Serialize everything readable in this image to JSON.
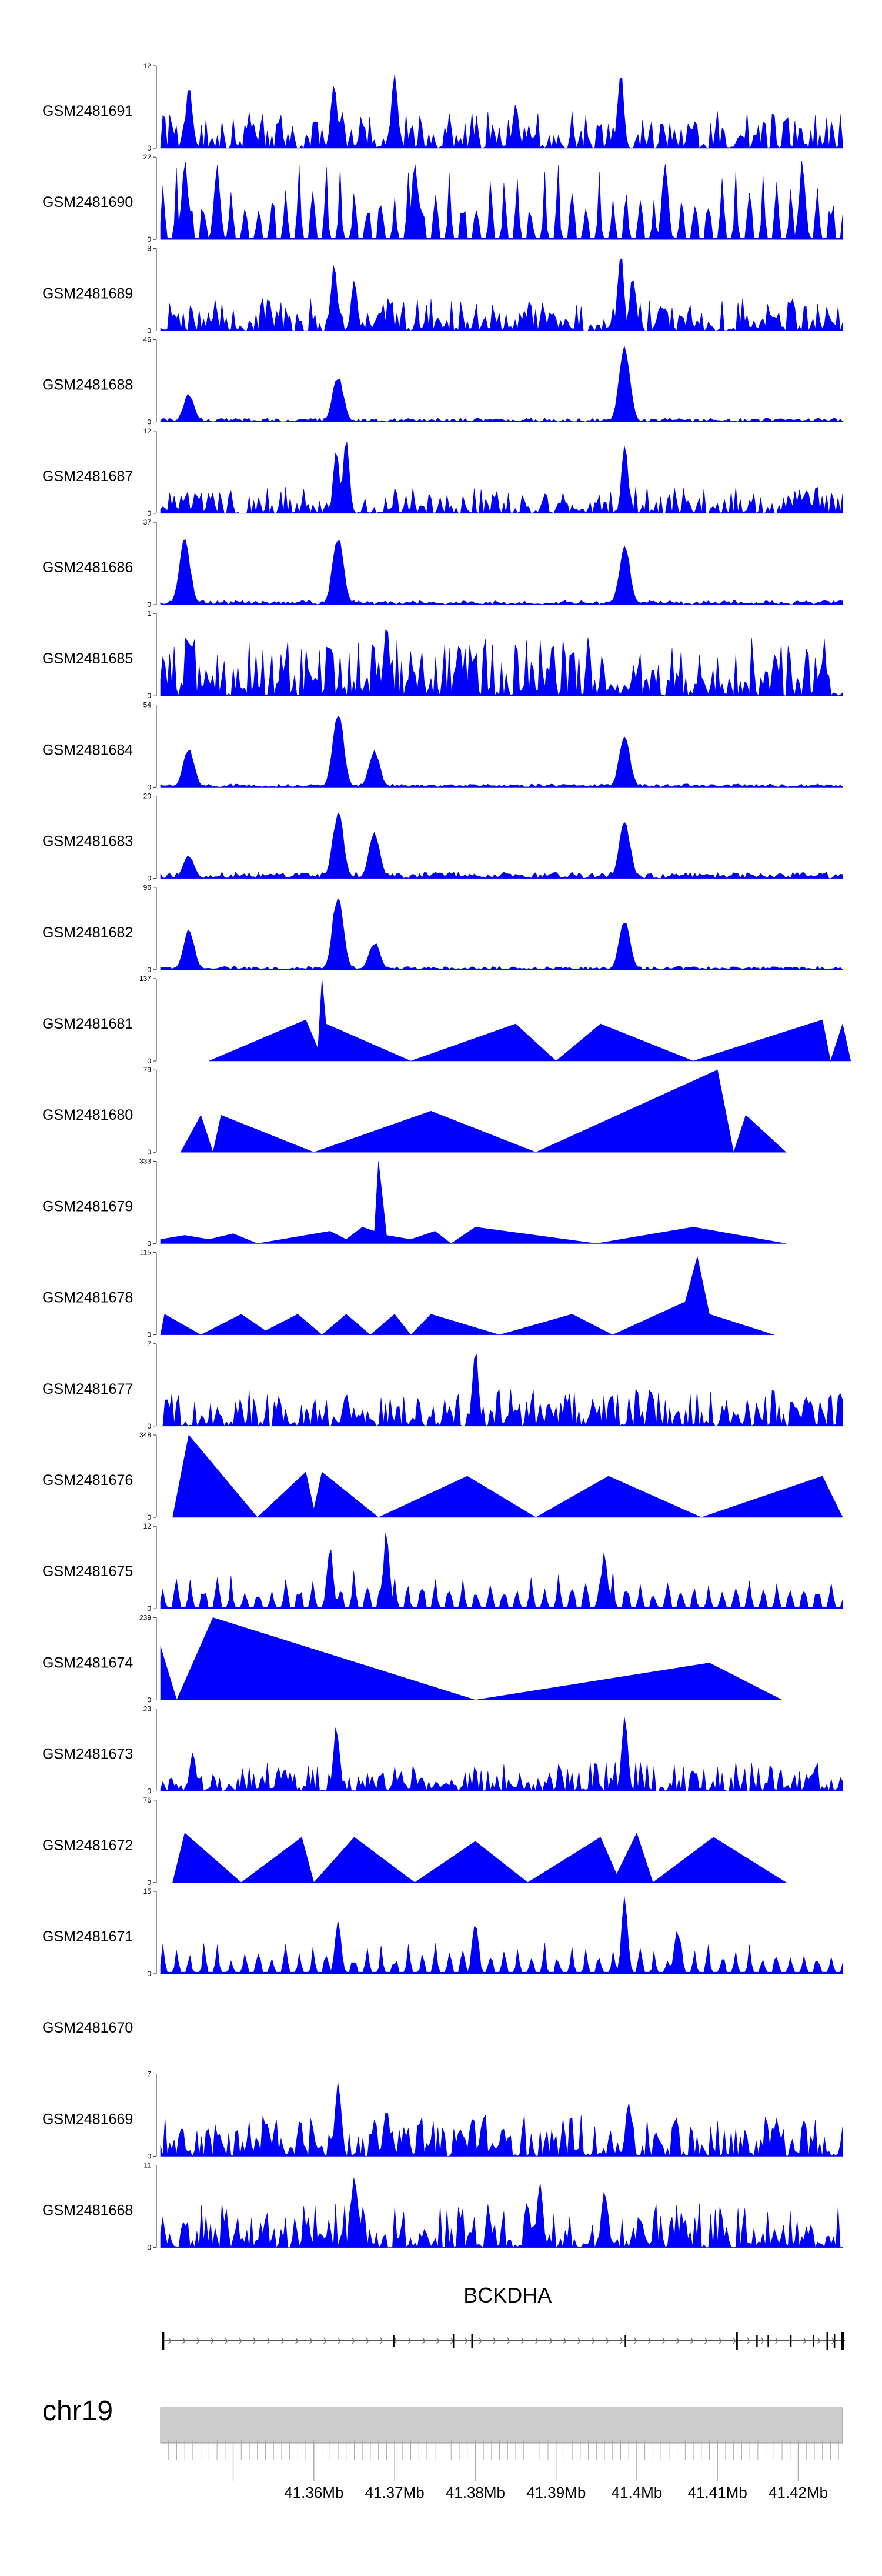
{
  "chart_data": {
    "type": "area",
    "chromosome": "chr19",
    "gene": {
      "name": "BCKDHA",
      "strand": "+"
    },
    "x_axis": {
      "range_mb": [
        41.341,
        41.4255
      ],
      "ticks": [
        "41.36Mb",
        "41.37Mb",
        "41.38Mb",
        "41.39Mb",
        "41.4Mb",
        "41.41Mb",
        "41.42Mb"
      ]
    },
    "color": "#0000ff",
    "tracks": [
      {
        "name": "GSM2481691",
        "ymax": "12",
        "style": "noisy",
        "level": 0.25,
        "peaks": [
          [
            41.3445,
            0.8
          ],
          [
            41.3625,
            0.9
          ],
          [
            41.37,
            1.0
          ],
          [
            41.398,
            1.0
          ],
          [
            41.385,
            0.55
          ]
        ]
      },
      {
        "name": "GSM2481690",
        "ymax": "22",
        "style": "sparse",
        "level": 0.7,
        "peaks": [
          [
            41.344,
            1.0
          ],
          [
            41.348,
            0.95
          ],
          [
            41.3725,
            1.0
          ],
          [
            41.4035,
            1.0
          ],
          [
            41.4205,
            1.0
          ]
        ]
      },
      {
        "name": "GSM2481689",
        "ymax": "8",
        "style": "noisy",
        "level": 0.22,
        "peaks": [
          [
            41.3625,
            0.9
          ],
          [
            41.365,
            0.65
          ],
          [
            41.398,
            1.0
          ],
          [
            41.3995,
            0.7
          ]
        ]
      },
      {
        "name": "GSM2481688",
        "ymax": "46",
        "style": "quiet",
        "level": 0.05,
        "peaks": [
          [
            41.3445,
            0.35
          ],
          [
            41.363,
            0.6
          ],
          [
            41.3985,
            1.0
          ]
        ]
      },
      {
        "name": "GSM2481687",
        "ymax": "12",
        "style": "noisy",
        "level": 0.18,
        "peaks": [
          [
            41.3628,
            0.85
          ],
          [
            41.364,
            1.0
          ],
          [
            41.3985,
            0.95
          ]
        ]
      },
      {
        "name": "GSM2481686",
        "ymax": "37",
        "style": "quiet",
        "level": 0.05,
        "peaks": [
          [
            41.344,
            0.85
          ],
          [
            41.363,
            0.9
          ],
          [
            41.3985,
            0.75
          ]
        ]
      },
      {
        "name": "GSM2481685",
        "ymax": "1",
        "style": "noisy",
        "level": 0.4,
        "peaks": [
          [
            41.3445,
            0.75
          ],
          [
            41.369,
            0.9
          ],
          [
            41.378,
            0.65
          ]
        ]
      },
      {
        "name": "GSM2481684",
        "ymax": "54",
        "style": "quiet",
        "level": 0.04,
        "peaks": [
          [
            41.3445,
            0.5
          ],
          [
            41.363,
            1.0
          ],
          [
            41.3675,
            0.45
          ],
          [
            41.3985,
            0.65
          ]
        ]
      },
      {
        "name": "GSM2481683",
        "ymax": "20",
        "style": "quiet",
        "level": 0.08,
        "peaks": [
          [
            41.363,
            0.85
          ],
          [
            41.3675,
            0.6
          ],
          [
            41.3985,
            0.75
          ],
          [
            41.3445,
            0.3
          ]
        ]
      },
      {
        "name": "GSM2481682",
        "ymax": "96",
        "style": "quiet",
        "level": 0.04,
        "peaks": [
          [
            41.3445,
            0.5
          ],
          [
            41.363,
            1.0
          ],
          [
            41.3675,
            0.35
          ],
          [
            41.3985,
            0.65
          ]
        ]
      },
      {
        "name": "GSM2481681",
        "ymax": "137",
        "style": "triangles",
        "pts": [
          [
            41.347,
            0
          ],
          [
            41.359,
            0.5
          ],
          [
            41.3605,
            0.15
          ],
          [
            41.361,
            1.0
          ],
          [
            41.3615,
            0.45
          ],
          [
            41.372,
            0
          ],
          [
            41.385,
            0.45
          ],
          [
            41.39,
            0
          ],
          [
            41.3955,
            0.45
          ],
          [
            41.407,
            0
          ],
          [
            41.423,
            0.5
          ],
          [
            41.424,
            0
          ],
          [
            41.4255,
            0.45
          ],
          [
            41.4265,
            0
          ]
        ]
      },
      {
        "name": "GSM2481680",
        "ymax": "79",
        "style": "triangles",
        "pts": [
          [
            41.3435,
            0
          ],
          [
            41.346,
            0.45
          ],
          [
            41.3475,
            0
          ],
          [
            41.3485,
            0.45
          ],
          [
            41.36,
            0
          ],
          [
            41.3745,
            0.5
          ],
          [
            41.3875,
            0
          ],
          [
            41.41,
            1.0
          ],
          [
            41.412,
            0
          ],
          [
            41.4135,
            0.45
          ],
          [
            41.4185,
            0
          ]
        ]
      },
      {
        "name": "GSM2481679",
        "ymax": "333",
        "style": "triangles",
        "pts": [
          [
            41.341,
            0.05
          ],
          [
            41.344,
            0.1
          ],
          [
            41.347,
            0.05
          ],
          [
            41.35,
            0.12
          ],
          [
            41.353,
            0
          ],
          [
            41.362,
            0.15
          ],
          [
            41.364,
            0.05
          ],
          [
            41.366,
            0.2
          ],
          [
            41.3675,
            0.15
          ],
          [
            41.368,
            1.0
          ],
          [
            41.369,
            0.1
          ],
          [
            41.372,
            0.05
          ],
          [
            41.375,
            0.15
          ],
          [
            41.377,
            0
          ],
          [
            41.38,
            0.2
          ],
          [
            41.395,
            0
          ],
          [
            41.407,
            0.2
          ],
          [
            41.4185,
            0
          ]
        ]
      },
      {
        "name": "GSM2481678",
        "ymax": "115",
        "style": "triangles",
        "pts": [
          [
            41.341,
            0
          ],
          [
            41.3415,
            0.25
          ],
          [
            41.346,
            0
          ],
          [
            41.351,
            0.25
          ],
          [
            41.354,
            0.05
          ],
          [
            41.358,
            0.25
          ],
          [
            41.361,
            0
          ],
          [
            41.364,
            0.25
          ],
          [
            41.367,
            0
          ],
          [
            41.37,
            0.25
          ],
          [
            41.372,
            0
          ],
          [
            41.3745,
            0.25
          ],
          [
            41.383,
            0
          ],
          [
            41.392,
            0.25
          ],
          [
            41.397,
            0
          ],
          [
            41.406,
            0.4
          ],
          [
            41.4075,
            0.95
          ],
          [
            41.409,
            0.25
          ],
          [
            41.417,
            0
          ]
        ]
      },
      {
        "name": "GSM2481677",
        "ymax": "7",
        "style": "noisy",
        "level": 0.25,
        "peaks": [
          [
            41.38,
            1.0
          ],
          [
            41.364,
            0.45
          ],
          [
            41.421,
            0.4
          ]
        ]
      },
      {
        "name": "GSM2481676",
        "ymax": "348",
        "style": "triangles",
        "pts": [
          [
            41.3425,
            0
          ],
          [
            41.3445,
            1.0
          ],
          [
            41.353,
            0
          ],
          [
            41.359,
            0.55
          ],
          [
            41.36,
            0.1
          ],
          [
            41.361,
            0.55
          ],
          [
            41.368,
            0
          ],
          [
            41.379,
            0.5
          ],
          [
            41.3875,
            0
          ],
          [
            41.3965,
            0.5
          ],
          [
            41.408,
            0
          ],
          [
            41.423,
            0.5
          ],
          [
            41.4255,
            0
          ]
        ]
      },
      {
        "name": "GSM2481675",
        "ymax": "12",
        "style": "sparse",
        "level": 0.35,
        "peaks": [
          [
            41.362,
            0.8
          ],
          [
            41.369,
            1.0
          ],
          [
            41.396,
            0.7
          ]
        ]
      },
      {
        "name": "GSM2481674",
        "ymax": "239",
        "style": "triangles",
        "pts": [
          [
            41.341,
            0.65
          ],
          [
            41.343,
            0
          ],
          [
            41.3475,
            1.0
          ],
          [
            41.38,
            0
          ],
          [
            41.409,
            0.45
          ],
          [
            41.418,
            0
          ]
        ]
      },
      {
        "name": "GSM2481673",
        "ymax": "23",
        "style": "noisy",
        "level": 0.2,
        "peaks": [
          [
            41.3628,
            0.85
          ],
          [
            41.3985,
            1.0
          ],
          [
            41.345,
            0.5
          ]
        ]
      },
      {
        "name": "GSM2481672",
        "ymax": "76",
        "style": "triangles",
        "pts": [
          [
            41.3425,
            0
          ],
          [
            41.344,
            0.6
          ],
          [
            41.351,
            0
          ],
          [
            41.3585,
            0.55
          ],
          [
            41.36,
            0
          ],
          [
            41.365,
            0.55
          ],
          [
            41.3725,
            0
          ],
          [
            41.38,
            0.5
          ],
          [
            41.3865,
            0
          ],
          [
            41.3955,
            0.55
          ],
          [
            41.3975,
            0.1
          ],
          [
            41.4,
            0.6
          ],
          [
            41.402,
            0
          ],
          [
            41.4095,
            0.55
          ],
          [
            41.4185,
            0
          ]
        ]
      },
      {
        "name": "GSM2481671",
        "ymax": "15",
        "style": "sparse",
        "level": 0.3,
        "peaks": [
          [
            41.3985,
            1.0
          ],
          [
            41.38,
            0.7
          ],
          [
            41.363,
            0.65
          ],
          [
            41.405,
            0.55
          ]
        ]
      },
      {
        "name": "GSM2481670",
        "ymax": "",
        "style": "empty"
      },
      {
        "name": "GSM2481669",
        "ymax": "7",
        "style": "noisy",
        "level": 0.28,
        "peaks": [
          [
            41.363,
            1.0
          ],
          [
            41.369,
            0.6
          ],
          [
            41.399,
            0.7
          ]
        ]
      },
      {
        "name": "GSM2481668",
        "ymax": "11",
        "style": "noisy",
        "level": 0.3,
        "peaks": [
          [
            41.365,
            0.9
          ],
          [
            41.388,
            0.8
          ],
          [
            41.396,
            0.75
          ]
        ]
      }
    ]
  }
}
